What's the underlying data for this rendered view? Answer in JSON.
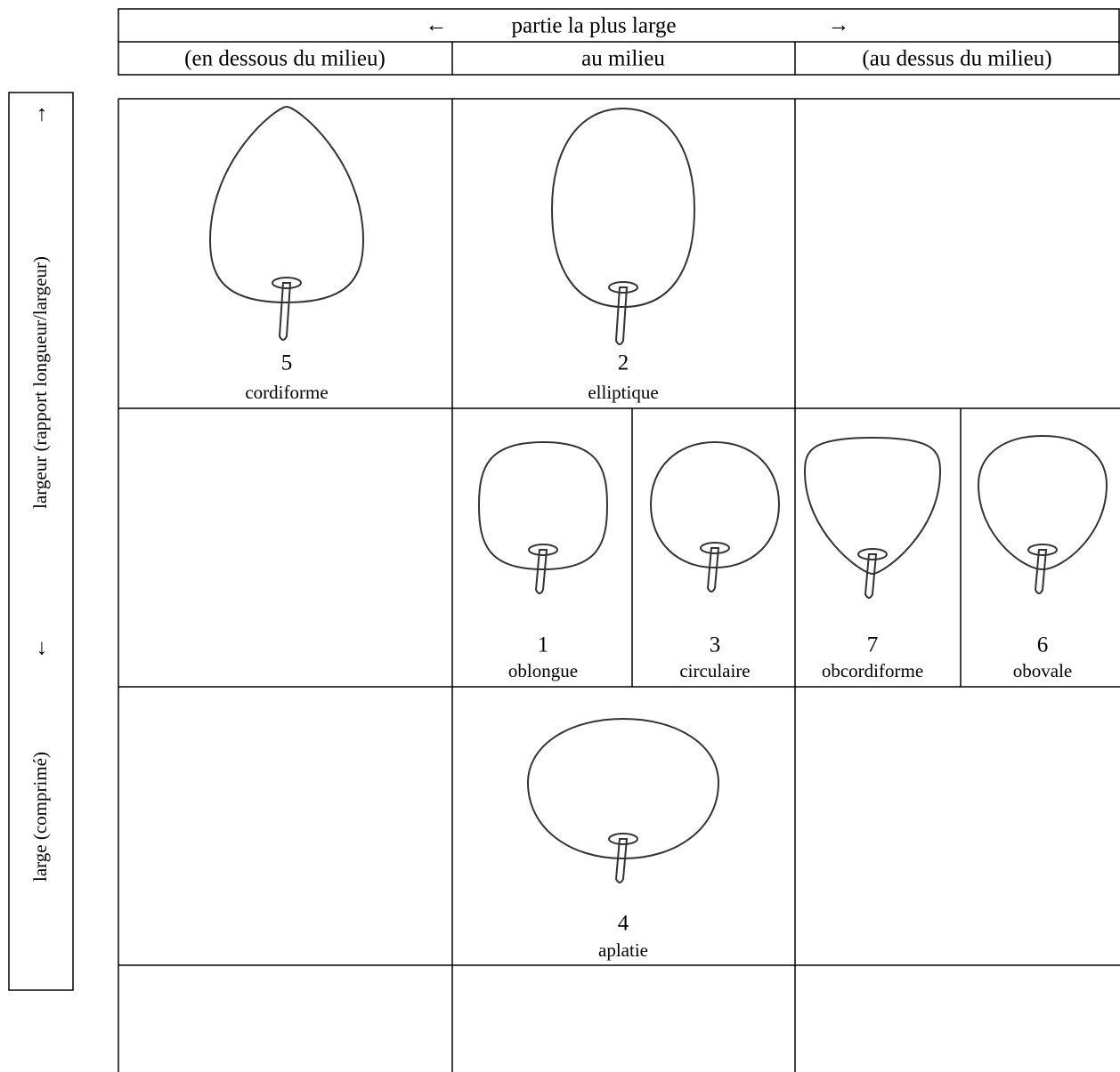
{
  "header": {
    "arrow_left": "←",
    "title": "partie la plus large",
    "arrow_right": "→",
    "columns": [
      "(en dessous du milieu)",
      "au milieu",
      "(au dessus du milieu)"
    ]
  },
  "side": {
    "arrow_up": "↑",
    "label_top": "largeur (rapport longueur/largeur)",
    "arrow_down": "↓",
    "label_bottom": "large (comprimé)"
  },
  "shapes": [
    {
      "number": "5",
      "name": "cordiforme"
    },
    {
      "number": "2",
      "name": "elliptique"
    },
    {
      "number": "1",
      "name": "oblongue"
    },
    {
      "number": "3",
      "name": "circulaire"
    },
    {
      "number": "7",
      "name": "obcordiforme"
    },
    {
      "number": "6",
      "name": "obovale"
    },
    {
      "number": "4",
      "name": "aplatie"
    }
  ]
}
